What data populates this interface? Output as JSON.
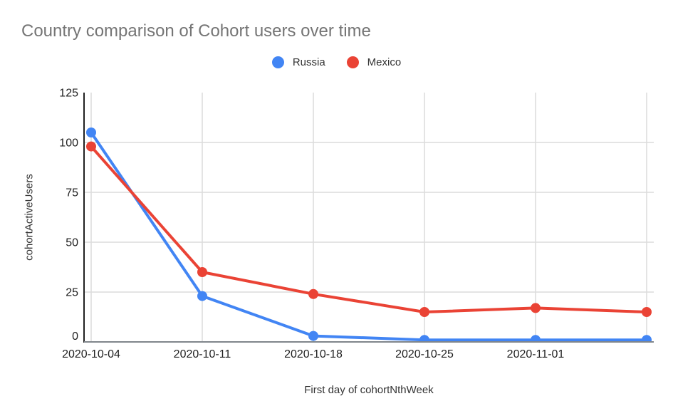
{
  "chart_data": {
    "type": "line",
    "title": "Country comparison of Cohort users over time",
    "xlabel": "First day of cohortNthWeek",
    "ylabel": "cohortActiveUsers",
    "x_tick_labels": [
      "2020-10-04",
      "2020-10-11",
      "2020-10-18",
      "2020-10-25",
      "2020-11-01"
    ],
    "num_points": 6,
    "series": [
      {
        "name": "Russia",
        "color": "#4285F4",
        "values": [
          105,
          23,
          3,
          1,
          1,
          1
        ]
      },
      {
        "name": "Mexico",
        "color": "#EA4335",
        "values": [
          98,
          35,
          24,
          15,
          17,
          15
        ]
      }
    ],
    "y_ticks": [
      0,
      25,
      50,
      75,
      100,
      125
    ],
    "ylim": [
      0,
      125
    ],
    "grid": true,
    "legend_position": "top",
    "marker": "circle"
  },
  "style": {
    "background": "#ffffff",
    "title_color": "#757575",
    "axis_title_color": "#333333",
    "tick_label_color": "#1f1f1f",
    "gridline_color": "#dcdcdc",
    "y_axis_color": "#212121",
    "baseline_color": "#80868b"
  }
}
